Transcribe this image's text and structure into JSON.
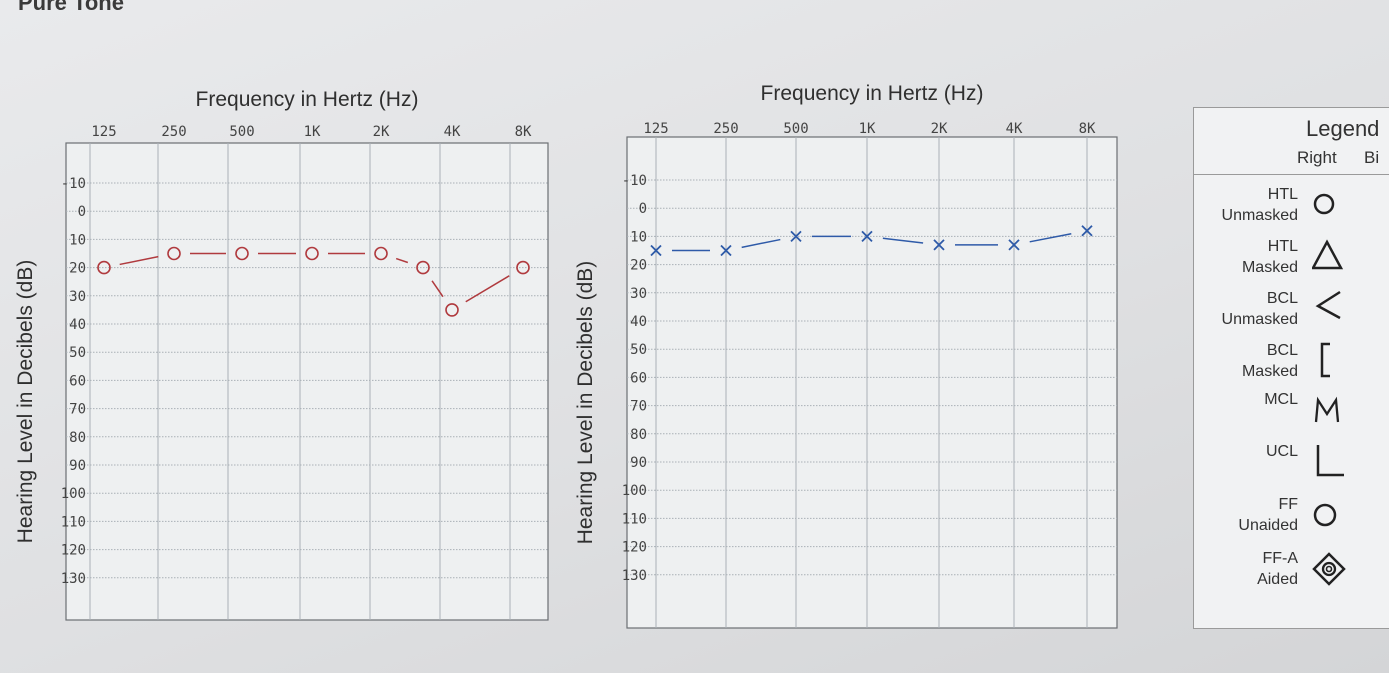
{
  "page_title": "Pure Tone",
  "colors": {
    "right_ear": "#b03a3e",
    "left_ear": "#2e5aa8",
    "grid": "#a9b0b6"
  },
  "chart_data": [
    {
      "type": "line",
      "xlabel": "Frequency in Hertz (Hz)",
      "ylabel": "Hearing Level in Decibels (dB)",
      "x": [
        "125",
        "250",
        "500",
        "1K",
        "2K",
        "3K",
        "4K",
        "8K"
      ],
      "x_tick_labels": [
        "125",
        "250",
        "500",
        "1K",
        "2K",
        "4K",
        "8K"
      ],
      "y_ticks": [
        "-10",
        "0",
        "10",
        "20",
        "30",
        "40",
        "50",
        "60",
        "70",
        "80",
        "90",
        "100",
        "110",
        "120",
        "130"
      ],
      "ylim": [
        -10,
        130
      ],
      "y_inverted": true,
      "grid": true,
      "series": [
        {
          "marker": "circle",
          "values": [
            20,
            15,
            15,
            15,
            15,
            20,
            35,
            20
          ]
        }
      ]
    },
    {
      "type": "line",
      "xlabel": "Frequency in Hertz (Hz)",
      "ylabel": "Hearing Level in Decibels (dB)",
      "x": [
        "125",
        "250",
        "500",
        "1K",
        "2K",
        "4K",
        "8K"
      ],
      "x_tick_labels": [
        "125",
        "250",
        "500",
        "1K",
        "2K",
        "4K",
        "8K"
      ],
      "y_ticks": [
        "-10",
        "0",
        "10",
        "20",
        "30",
        "40",
        "50",
        "60",
        "70",
        "80",
        "90",
        "100",
        "110",
        "120",
        "130"
      ],
      "ylim": [
        -10,
        130
      ],
      "y_inverted": true,
      "grid": true,
      "series": [
        {
          "marker": "x",
          "values": [
            15,
            15,
            10,
            10,
            13,
            13,
            8
          ]
        }
      ]
    }
  ],
  "legend": {
    "title": "Legend",
    "columns": [
      "Right",
      "Bi"
    ],
    "items": [
      {
        "label_line1": "HTL",
        "label_line2": "Unmasked",
        "symbol": "circle-symbol"
      },
      {
        "label_line1": "HTL",
        "label_line2": "Masked",
        "symbol": "triangle-symbol"
      },
      {
        "label_line1": "BCL",
        "label_line2": "Unmasked",
        "symbol": "less-than-symbol"
      },
      {
        "label_line1": "BCL",
        "label_line2": "Masked",
        "symbol": "bracket-symbol"
      },
      {
        "label_line1": "MCL",
        "label_line2": "",
        "symbol": "m-symbol"
      },
      {
        "label_line1": "UCL",
        "label_line2": "",
        "symbol": "l-symbol"
      },
      {
        "label_line1": "FF",
        "label_line2": "Unaided",
        "symbol": "ring-symbol"
      },
      {
        "label_line1": "FF-A",
        "label_line2": "Aided",
        "symbol": "diamond-symbol"
      }
    ]
  }
}
